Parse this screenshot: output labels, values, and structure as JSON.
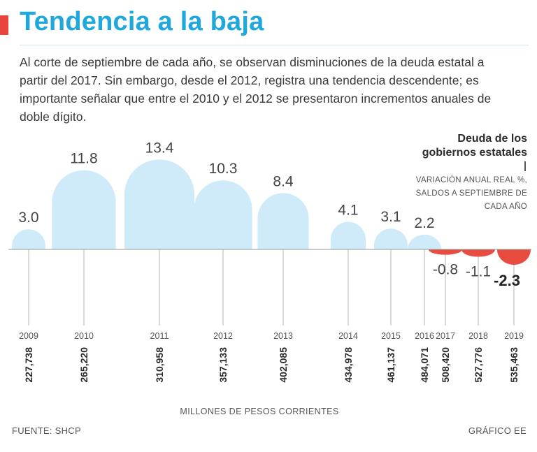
{
  "header": {
    "title": "Tendencia a la baja",
    "subtitle": "Al corte de septiembre de cada año, se observan disminuciones de la deuda estatal a partir del 2017. Sin embargo, desde el 2012, registra una tendencia descendente; es importante señalar que entre el 2010 y el 2012 se presentaron incrementos anuales de doble dígito."
  },
  "legend": {
    "title": "Deuda de los gobiernos estatales",
    "subtitle": "VARIACIÓN ANUAL REAL %, SALDOS A SEPTIEMBRE DE CADA AÑO"
  },
  "chart_data": {
    "type": "bar",
    "title": "Deuda de los gobiernos estatales",
    "ylabel": "Variación anual real %",
    "xlabel": "Millones de pesos corrientes",
    "categories": [
      "2009",
      "2010",
      "2011",
      "2012",
      "2013",
      "2014",
      "2015",
      "2016",
      "2017",
      "2018",
      "2019"
    ],
    "values": [
      3.0,
      11.8,
      13.4,
      10.3,
      8.4,
      4.1,
      3.1,
      2.2,
      -0.8,
      -1.1,
      -2.3
    ],
    "value_labels": [
      "3.0",
      "11.8",
      "13.4",
      "10.3",
      "8.4",
      "4.1",
      "3.1",
      "2.2",
      "-0.8",
      "-1.1",
      "-2.3"
    ],
    "balances": [
      "227,738",
      "265,220",
      "310,958",
      "357,133",
      "402,085",
      "434,978",
      "461,137",
      "484,071",
      "508,420",
      "527,776",
      "535,463"
    ],
    "balances_label": "MILLONES DE PESOS CORRIENTES",
    "colors": {
      "positive": "#cfeaf8",
      "negative": "#e84b3f",
      "axis": "#bbbbbb"
    }
  },
  "footer": {
    "source": "FUENTE: SHCP",
    "credit": "GRÁFICO EE"
  }
}
